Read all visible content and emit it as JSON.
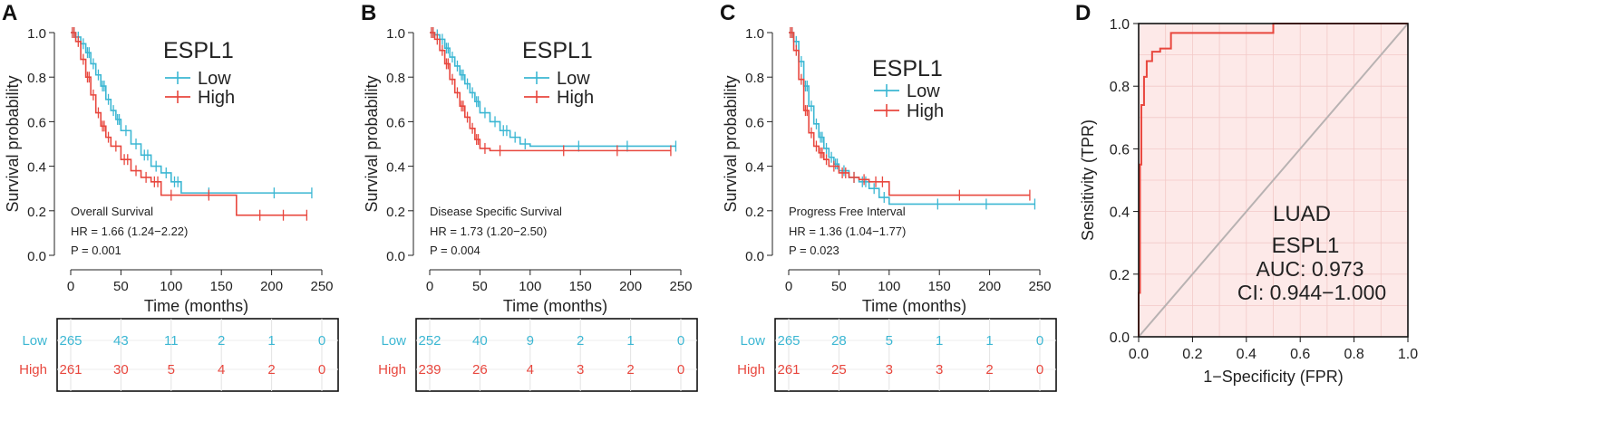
{
  "colors": {
    "low": "#3cb7d3",
    "high": "#e8473e",
    "roc": "#e8473e",
    "roc_fill": "#fde9e8",
    "diag": "#b8b2b2",
    "grid": "#f3c9c7"
  },
  "chart_data": [
    {
      "panel": "A",
      "type": "line",
      "title": "ESPL1",
      "xlabel": "Time (months)",
      "ylabel": "Survival probability",
      "xlim": [
        0,
        250
      ],
      "ylim": [
        0,
        1
      ],
      "xticks": [
        "0",
        "50",
        "100",
        "150",
        "200",
        "250"
      ],
      "yticks": [
        "0.0",
        "0.2",
        "0.4",
        "0.6",
        "0.8",
        "1.0"
      ],
      "legend": [
        "Low",
        "High"
      ],
      "annotation": {
        "endpoint": "Overall Survival",
        "hr": "HR = 1.66 (1.24−2.22)",
        "p": "P = 0.001"
      },
      "series": [
        {
          "name": "Low",
          "x": [
            0,
            5,
            10,
            15,
            20,
            25,
            30,
            35,
            40,
            45,
            50,
            60,
            70,
            80,
            90,
            100,
            110,
            165,
            240
          ],
          "y": [
            1.0,
            0.98,
            0.95,
            0.91,
            0.86,
            0.81,
            0.76,
            0.7,
            0.65,
            0.61,
            0.56,
            0.5,
            0.45,
            0.4,
            0.37,
            0.33,
            0.28,
            0.28,
            0.28
          ]
        },
        {
          "name": "High",
          "x": [
            0,
            5,
            10,
            15,
            20,
            25,
            30,
            35,
            40,
            50,
            60,
            70,
            80,
            90,
            110,
            165,
            235
          ],
          "y": [
            1.0,
            0.96,
            0.88,
            0.8,
            0.72,
            0.64,
            0.58,
            0.53,
            0.49,
            0.43,
            0.38,
            0.35,
            0.33,
            0.27,
            0.27,
            0.18,
            0.18
          ]
        }
      ],
      "risk_table": {
        "rows": [
          {
            "label": "Low",
            "values": [
              "265",
              "43",
              "11",
              "2",
              "1",
              "0"
            ]
          },
          {
            "label": "High",
            "values": [
              "261",
              "30",
              "5",
              "4",
              "2",
              "0"
            ]
          }
        ]
      }
    },
    {
      "panel": "B",
      "type": "line",
      "title": "ESPL1",
      "xlabel": "Time (months)",
      "ylabel": "Survival probability",
      "xlim": [
        0,
        250
      ],
      "ylim": [
        0,
        1
      ],
      "xticks": [
        "0",
        "50",
        "100",
        "150",
        "200",
        "250"
      ],
      "yticks": [
        "0.0",
        "0.2",
        "0.4",
        "0.6",
        "0.8",
        "1.0"
      ],
      "legend": [
        "Low",
        "High"
      ],
      "annotation": {
        "endpoint": "Disease Specific Survival",
        "hr": "HR = 1.73 (1.20−2.50)",
        "p": "P = 0.004"
      },
      "series": [
        {
          "name": "Low",
          "x": [
            0,
            5,
            10,
            15,
            20,
            25,
            30,
            35,
            40,
            45,
            50,
            60,
            70,
            80,
            90,
            100,
            245
          ],
          "y": [
            1.0,
            0.99,
            0.97,
            0.93,
            0.89,
            0.85,
            0.81,
            0.77,
            0.73,
            0.69,
            0.64,
            0.6,
            0.56,
            0.53,
            0.5,
            0.49,
            0.49
          ]
        },
        {
          "name": "High",
          "x": [
            0,
            5,
            10,
            15,
            20,
            25,
            30,
            35,
            40,
            45,
            50,
            60,
            80,
            240
          ],
          "y": [
            1.0,
            0.97,
            0.92,
            0.86,
            0.79,
            0.73,
            0.67,
            0.62,
            0.57,
            0.52,
            0.48,
            0.47,
            0.47,
            0.47
          ]
        }
      ],
      "risk_table": {
        "rows": [
          {
            "label": "Low",
            "values": [
              "252",
              "40",
              "9",
              "2",
              "1",
              "0"
            ]
          },
          {
            "label": "High",
            "values": [
              "239",
              "26",
              "4",
              "3",
              "2",
              "0"
            ]
          }
        ]
      }
    },
    {
      "panel": "C",
      "type": "line",
      "title": "ESPL1",
      "xlabel": "Time (months)",
      "ylabel": "Survival probability",
      "xlim": [
        0,
        250
      ],
      "ylim": [
        0,
        1
      ],
      "xticks": [
        "0",
        "50",
        "100",
        "150",
        "200",
        "250"
      ],
      "yticks": [
        "0.0",
        "0.2",
        "0.4",
        "0.6",
        "0.8",
        "1.0"
      ],
      "legend": [
        "Low",
        "High"
      ],
      "annotation": {
        "endpoint": "Progress Free Interval",
        "hr": "HR = 1.36 (1.04−1.77)",
        "p": "P = 0.023"
      },
      "series": [
        {
          "name": "Low",
          "x": [
            0,
            5,
            10,
            15,
            20,
            25,
            30,
            35,
            40,
            45,
            50,
            60,
            70,
            80,
            90,
            100,
            245
          ],
          "y": [
            1.0,
            0.96,
            0.87,
            0.76,
            0.67,
            0.59,
            0.53,
            0.48,
            0.44,
            0.41,
            0.38,
            0.35,
            0.33,
            0.3,
            0.26,
            0.23,
            0.23
          ]
        },
        {
          "name": "High",
          "x": [
            0,
            5,
            10,
            15,
            20,
            25,
            30,
            35,
            40,
            50,
            60,
            70,
            80,
            100,
            240
          ],
          "y": [
            1.0,
            0.92,
            0.79,
            0.65,
            0.55,
            0.49,
            0.46,
            0.43,
            0.4,
            0.37,
            0.35,
            0.34,
            0.33,
            0.27,
            0.27
          ]
        }
      ],
      "risk_table": {
        "rows": [
          {
            "label": "Low",
            "values": [
              "265",
              "28",
              "5",
              "1",
              "1",
              "0"
            ]
          },
          {
            "label": "High",
            "values": [
              "261",
              "25",
              "3",
              "3",
              "2",
              "0"
            ]
          }
        ]
      }
    },
    {
      "panel": "D",
      "type": "line",
      "subtype": "roc",
      "xlabel": "1−Specificity (FPR)",
      "ylabel": "Sensitivity (TPR)",
      "xlim": [
        0,
        1
      ],
      "ylim": [
        0,
        1
      ],
      "xticks": [
        "0.0",
        "0.2",
        "0.4",
        "0.6",
        "0.8",
        "1.0"
      ],
      "yticks": [
        "0.0",
        "0.2",
        "0.4",
        "0.6",
        "0.8",
        "1.0"
      ],
      "annotation": {
        "cancer": "LUAD",
        "gene": "ESPL1",
        "auc": "AUC: 0.973",
        "ci": "CI: 0.944−1.000"
      },
      "roc": {
        "fpr": [
          0,
          0,
          0.005,
          0.005,
          0.01,
          0.01,
          0.02,
          0.02,
          0.03,
          0.03,
          0.05,
          0.05,
          0.08,
          0.08,
          0.12,
          0.12,
          0.5,
          0.5,
          1.0
        ],
        "tpr": [
          0,
          0.14,
          0.14,
          0.55,
          0.55,
          0.74,
          0.74,
          0.83,
          0.83,
          0.88,
          0.88,
          0.91,
          0.91,
          0.92,
          0.92,
          0.97,
          0.97,
          1.0,
          1.0
        ]
      }
    }
  ]
}
